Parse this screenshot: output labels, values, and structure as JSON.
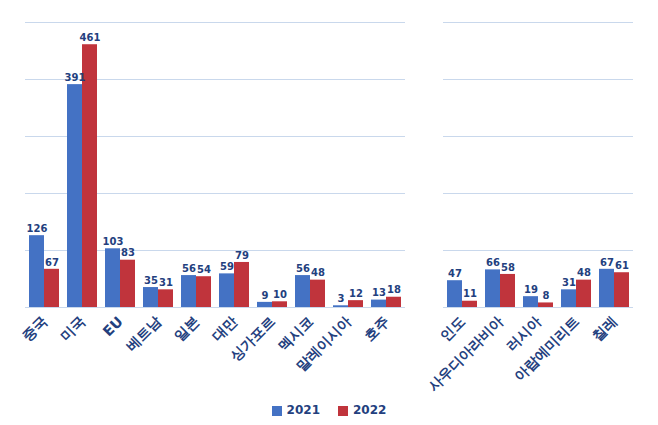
{
  "chart_data": {
    "type": "bar",
    "categories": [
      "중국",
      "미국",
      "EU",
      "베트남",
      "일본",
      "대만",
      "싱가포르",
      "멕시코",
      "말레이시아",
      "호주",
      null,
      "인도",
      "사우디아라비아",
      "러시아",
      "아랍에미리트",
      "칠레"
    ],
    "series": [
      {
        "name": "2021",
        "color": "#4472c4",
        "values": [
          126,
          391,
          103,
          35,
          56,
          59,
          9,
          56,
          3,
          13,
          null,
          47,
          66,
          19,
          31,
          67
        ]
      },
      {
        "name": "2022",
        "color": "#c0343c",
        "values": [
          67,
          461,
          83,
          31,
          54,
          79,
          10,
          48,
          12,
          18,
          null,
          11,
          58,
          8,
          48,
          61
        ]
      }
    ],
    "ylim": [
      0,
      500
    ],
    "yticks": [
      0,
      100,
      200,
      300,
      400,
      500
    ],
    "grid": true,
    "data_labels": true,
    "tick_labels": "x",
    "legend": "bottom"
  }
}
